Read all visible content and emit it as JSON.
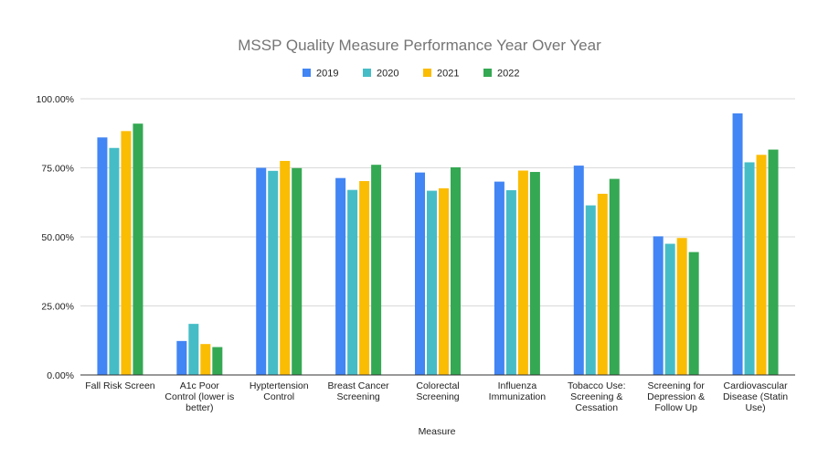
{
  "chart_data": {
    "type": "bar",
    "title": "MSSP Quality Measure Performance Year Over Year",
    "xlabel": "Measure",
    "ylabel": "",
    "ylim": [
      0,
      100
    ],
    "yticks": [
      "0.00%",
      "25.00%",
      "50.00%",
      "75.00%",
      "100.00%"
    ],
    "grid": true,
    "legend_position": "top",
    "categories": [
      "Fall Risk Screen",
      "A1c Poor Control (lower is better)",
      "Hyptertension Control",
      "Breast Cancer Screening",
      "Colorectal Screening",
      "Influenza Immunization",
      "Tobacco Use: Screening & Cessation",
      "Screening for Depression & Follow Up",
      "Cardiovascular Disease (Statin Use)"
    ],
    "category_label_lines": [
      [
        "Fall Risk Screen"
      ],
      [
        "A1c Poor",
        "Control (lower is",
        "better)"
      ],
      [
        "Hyptertension",
        "Control"
      ],
      [
        "Breast Cancer",
        "Screening"
      ],
      [
        "Colorectal",
        "Screening"
      ],
      [
        "Influenza",
        "Immunization"
      ],
      [
        "Tobacco Use:",
        "Screening &",
        "Cessation"
      ],
      [
        "Screening for",
        "Depression &",
        "Follow Up"
      ],
      [
        "Cardiovascular",
        "Disease (Statin",
        "Use)"
      ]
    ],
    "series": [
      {
        "name": "2019",
        "color": "#4285f4",
        "values": [
          86.0,
          12.3,
          75.0,
          71.3,
          73.3,
          70.0,
          75.8,
          50.2,
          94.7
        ]
      },
      {
        "name": "2020",
        "color": "#46bdc6",
        "values": [
          82.2,
          18.5,
          73.9,
          67.0,
          66.7,
          66.9,
          61.4,
          47.5,
          77.0
        ]
      },
      {
        "name": "2021",
        "color": "#fbbc04",
        "values": [
          88.3,
          11.2,
          77.5,
          70.2,
          67.6,
          74.0,
          65.6,
          49.6,
          79.7
        ]
      },
      {
        "name": "2022",
        "color": "#34a853",
        "values": [
          91.0,
          10.1,
          74.9,
          76.1,
          75.2,
          73.5,
          71.0,
          44.5,
          81.6
        ]
      }
    ]
  }
}
